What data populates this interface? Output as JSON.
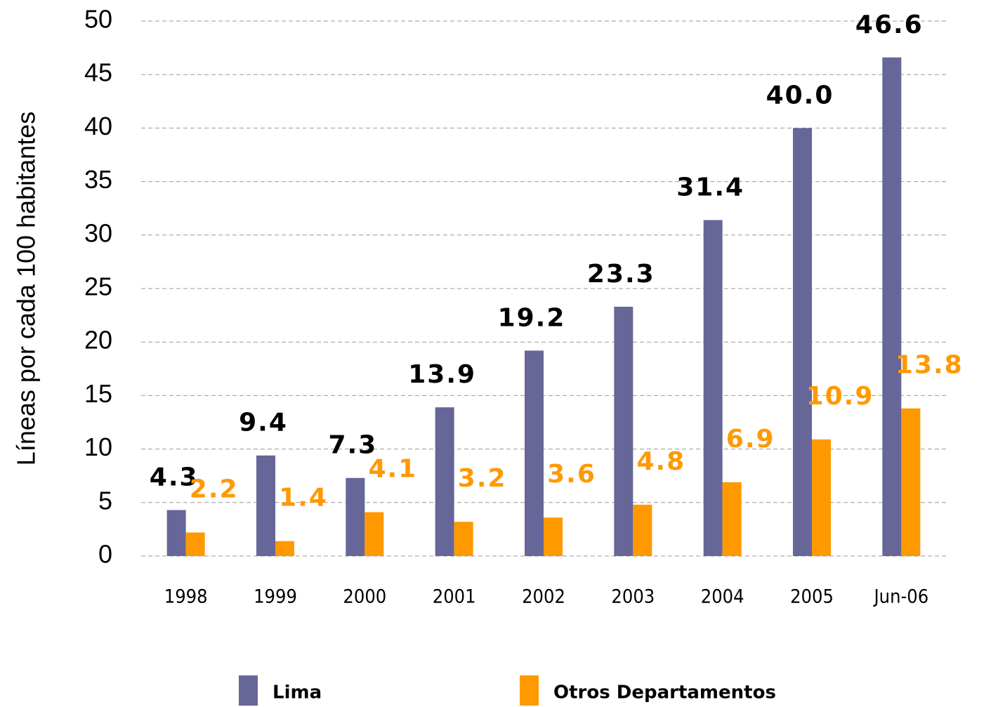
{
  "chart_data": {
    "type": "bar",
    "y_label": "Líneas por cada 100 habitantes",
    "categories": [
      "1998",
      "1999",
      "2000",
      "2001",
      "2002",
      "2003",
      "2004",
      "2005",
      "Jun-06"
    ],
    "series": [
      {
        "name": "Lima",
        "color": "#666699",
        "label_color": "#000000",
        "values": [
          4.3,
          9.4,
          7.3,
          13.9,
          19.2,
          23.3,
          31.4,
          40,
          46.6
        ],
        "value_labels": [
          "4.3",
          "9.4",
          "7.3",
          "13.9",
          "19.2",
          "23.3",
          "31.4",
          "40.0",
          "46.6"
        ]
      },
      {
        "name": "Otros Departamentos",
        "color": "#ff9900",
        "label_color": "#ff9900",
        "values": [
          2.2,
          1.4,
          4.1,
          3.2,
          3.6,
          4.8,
          6.9,
          10.9,
          13.8
        ]
      }
    ],
    "ylim": [
      0,
      50
    ],
    "yticks": [
      0,
      5,
      10,
      15,
      20,
      25,
      30,
      35,
      40,
      45,
      50
    ],
    "grid": true
  }
}
